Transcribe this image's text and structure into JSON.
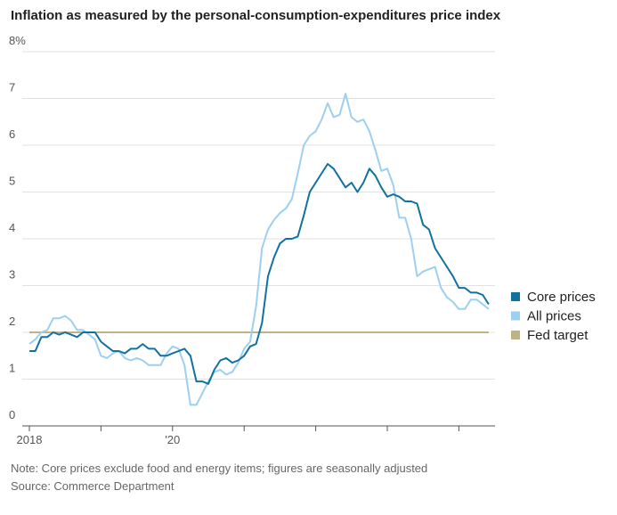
{
  "chart_data": {
    "type": "line",
    "title": "Inflation as measured by the personal-consumption-expenditures price index",
    "note": "Note: Core prices exclude food and energy items; figures are seasonally adjusted",
    "source": "Source: Commerce Department",
    "categories": [
      "2018",
      null,
      null,
      null,
      null,
      null,
      null,
      null,
      null,
      null,
      null,
      null,
      null,
      null,
      null,
      null,
      null,
      null,
      null,
      null,
      null,
      null,
      null,
      null,
      "'20",
      null,
      null,
      null,
      null,
      null,
      null,
      null,
      null,
      null,
      null,
      null,
      null,
      null,
      null,
      null,
      null,
      null,
      null,
      null,
      null,
      null,
      null,
      null,
      null,
      null,
      null,
      null,
      null,
      null,
      null,
      null,
      null,
      null,
      null,
      null,
      null,
      null,
      null,
      null,
      null,
      null,
      null,
      null,
      null,
      null,
      null,
      null,
      null,
      null,
      null,
      null,
      null,
      null
    ],
    "ylim": [
      0,
      8
    ],
    "yticks": [
      0,
      1,
      2,
      3,
      4,
      5,
      6,
      7,
      {
        "value": 8,
        "label": "8%"
      }
    ],
    "grid": true,
    "legend": "right",
    "series": [
      {
        "name": "Core prices",
        "color": "#11719f",
        "values": [
          1.6,
          1.6,
          1.9,
          1.9,
          2.0,
          1.95,
          2.0,
          1.95,
          1.9,
          2.0,
          2.0,
          2.0,
          1.8,
          1.7,
          1.6,
          1.6,
          1.55,
          1.65,
          1.65,
          1.75,
          1.65,
          1.65,
          1.5,
          1.5,
          1.55,
          1.6,
          1.65,
          1.5,
          0.95,
          0.95,
          0.9,
          1.2,
          1.4,
          1.45,
          1.35,
          1.4,
          1.5,
          1.7,
          1.75,
          2.2,
          3.2,
          3.6,
          3.9,
          4.0,
          4.0,
          4.05,
          4.5,
          5.0,
          5.2,
          5.4,
          5.6,
          5.5,
          5.3,
          5.1,
          5.2,
          5.0,
          5.2,
          5.5,
          5.35,
          5.1,
          4.9,
          4.95,
          4.9,
          4.8,
          4.8,
          4.75,
          4.3,
          4.2,
          3.8,
          3.6,
          3.4,
          3.2,
          2.95,
          2.95,
          2.85,
          2.85,
          2.8,
          2.6
        ]
      },
      {
        "name": "All prices",
        "color": "#9dcff0",
        "values": [
          1.75,
          1.85,
          2.0,
          2.05,
          2.3,
          2.3,
          2.35,
          2.25,
          2.05,
          2.05,
          1.95,
          1.85,
          1.5,
          1.45,
          1.55,
          1.6,
          1.45,
          1.4,
          1.45,
          1.4,
          1.3,
          1.3,
          1.3,
          1.55,
          1.7,
          1.65,
          1.3,
          0.45,
          0.45,
          0.7,
          0.95,
          1.15,
          1.2,
          1.1,
          1.15,
          1.35,
          1.65,
          1.8,
          2.55,
          3.8,
          4.2,
          4.4,
          4.55,
          4.65,
          4.85,
          5.4,
          6.0,
          6.2,
          6.3,
          6.55,
          6.9,
          6.6,
          6.65,
          7.1,
          6.6,
          6.5,
          6.55,
          6.3,
          5.9,
          5.45,
          5.5,
          5.15,
          4.45,
          4.45,
          4.0,
          3.2,
          3.3,
          3.35,
          3.4,
          2.95,
          2.75,
          2.65,
          2.5,
          2.5,
          2.7,
          2.7,
          2.6,
          2.5
        ]
      }
    ],
    "reference_lines": [
      {
        "name": "Fed target",
        "value": 2,
        "color": "#bfb386"
      }
    ]
  }
}
